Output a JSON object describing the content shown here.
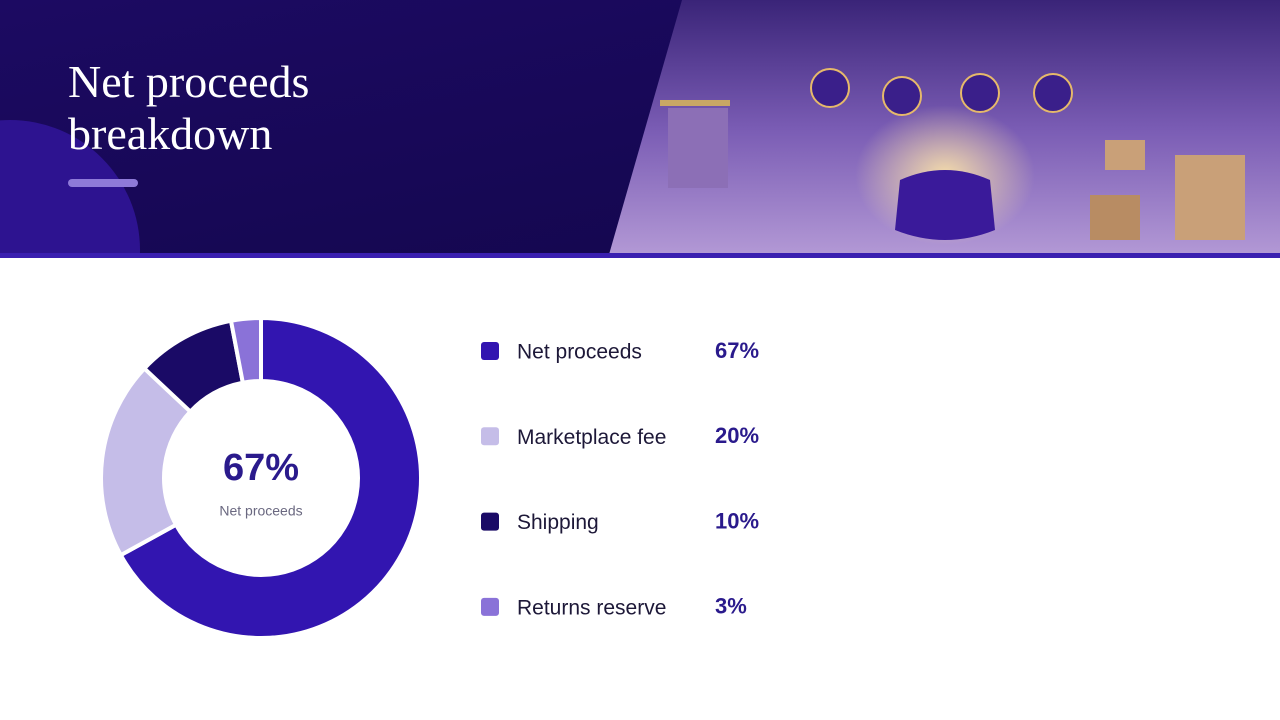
{
  "chart_data": {
    "type": "pie",
    "donut": true,
    "title": "Net proceeds breakdown",
    "categories": [
      "Net proceeds",
      "Marketplace fee",
      "Shipping",
      "Returns reserve"
    ],
    "values": [
      67,
      20,
      10,
      3
    ],
    "value_labels": [
      "67%",
      "20%",
      "10%",
      "3%"
    ],
    "colors": [
      "#3215b0",
      "#c5bde8",
      "#1a0a66",
      "#8a72d8"
    ]
  }
}
